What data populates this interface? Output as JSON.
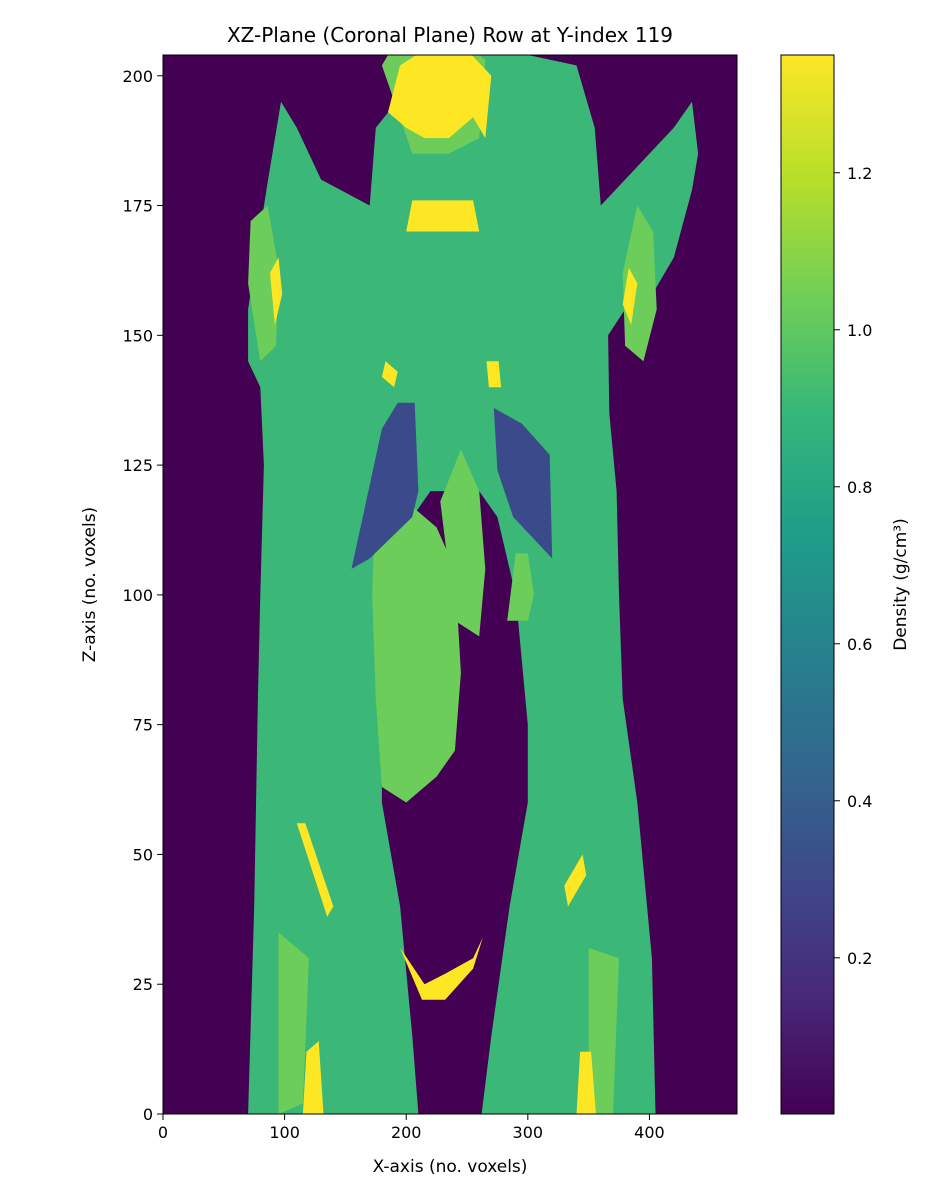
{
  "chart_data": {
    "type": "heatmap",
    "title": "XZ-Plane (Coronal Plane) Row at Y-index 119",
    "xlabel": "X-axis (no. voxels)",
    "ylabel": "Z-axis (no. voxels)",
    "xlim": [
      0,
      472
    ],
    "ylim": [
      0,
      204
    ],
    "xticks": [
      "0",
      "100",
      "200",
      "300",
      "400"
    ],
    "yticks": [
      "0",
      "25",
      "50",
      "75",
      "100",
      "125",
      "150",
      "175",
      "200"
    ],
    "colorbar": {
      "label": "Density (g/cm³)",
      "colormap": "viridis",
      "range": [
        0.001,
        1.35
      ],
      "ticks": [
        "0.2",
        "0.4",
        "0.6",
        "0.8",
        "1.0",
        "1.2"
      ]
    },
    "colors": {
      "air": "#440154",
      "lung": "#3b4a8a",
      "adipose": "#2e9e7a",
      "soft_tissue": "#3bb878",
      "muscle": "#3dbb74",
      "organ": "#6ccd5a",
      "bone": "#fde725"
    },
    "regions": [
      {
        "tissue": "soft_tissue",
        "poly": [
          [
            210,
            0
          ],
          [
            205,
            15
          ],
          [
            195,
            40
          ],
          [
            180,
            60
          ],
          [
            180,
            75
          ],
          [
            190,
            100
          ],
          [
            205,
            115
          ],
          [
            220,
            120
          ],
          [
            260,
            120
          ],
          [
            275,
            115
          ],
          [
            290,
            100
          ],
          [
            300,
            75
          ],
          [
            300,
            60
          ],
          [
            285,
            40
          ],
          [
            270,
            15
          ],
          [
            262,
            0
          ],
          [
            405,
            0
          ],
          [
            402,
            30
          ],
          [
            390,
            60
          ],
          [
            378,
            80
          ],
          [
            375,
            100
          ],
          [
            373,
            120
          ],
          [
            367,
            135
          ],
          [
            366,
            150
          ],
          [
            380,
            155
          ],
          [
            395,
            155
          ],
          [
            420,
            165
          ],
          [
            435,
            178
          ],
          [
            440,
            185
          ],
          [
            435,
            195
          ],
          [
            420,
            190
          ],
          [
            380,
            180
          ],
          [
            360,
            175
          ],
          [
            355,
            190
          ],
          [
            340,
            202
          ],
          [
            280,
            205
          ],
          [
            220,
            203
          ],
          [
            175,
            190
          ],
          [
            170,
            175
          ],
          [
            130,
            180
          ],
          [
            110,
            190
          ],
          [
            97,
            195
          ],
          [
            85,
            178
          ],
          [
            70,
            155
          ],
          [
            70,
            145
          ],
          [
            80,
            140
          ],
          [
            83,
            125
          ],
          [
            80,
            100
          ],
          [
            78,
            80
          ],
          [
            75,
            40
          ],
          [
            70,
            0
          ]
        ]
      },
      {
        "tissue": "organ",
        "poly": [
          [
            175,
            120
          ],
          [
            200,
            118
          ],
          [
            225,
            113
          ],
          [
            240,
            105
          ],
          [
            245,
            85
          ],
          [
            240,
            70
          ],
          [
            225,
            65
          ],
          [
            200,
            60
          ],
          [
            180,
            63
          ],
          [
            175,
            80
          ],
          [
            172,
            100
          ]
        ]
      },
      {
        "tissue": "organ",
        "poly": [
          [
            228,
            118
          ],
          [
            245,
            128
          ],
          [
            260,
            120
          ],
          [
            265,
            105
          ],
          [
            260,
            92
          ],
          [
            240,
            95
          ]
        ]
      },
      {
        "tissue": "organ",
        "poly": [
          [
            300,
            95
          ],
          [
            305,
            100
          ],
          [
            300,
            108
          ],
          [
            290,
            108
          ],
          [
            283,
            95
          ]
        ]
      },
      {
        "tissue": "organ",
        "poly": [
          [
            72,
            172
          ],
          [
            86,
            175
          ],
          [
            95,
            163
          ],
          [
            93,
            148
          ],
          [
            80,
            145
          ],
          [
            70,
            160
          ]
        ]
      },
      {
        "tissue": "organ",
        "poly": [
          [
            380,
            148
          ],
          [
            395,
            145
          ],
          [
            406,
            155
          ],
          [
            403,
            170
          ],
          [
            390,
            175
          ],
          [
            378,
            162
          ]
        ]
      },
      {
        "tissue": "organ",
        "poly": [
          [
            95,
            0
          ],
          [
            115,
            2
          ],
          [
            120,
            30
          ],
          [
            95,
            35
          ]
        ]
      },
      {
        "tissue": "organ",
        "poly": [
          [
            350,
            0
          ],
          [
            370,
            0
          ],
          [
            375,
            30
          ],
          [
            350,
            32
          ]
        ]
      },
      {
        "tissue": "organ",
        "poly": [
          [
            180,
            202
          ],
          [
            190,
            206
          ],
          [
            215,
            207
          ],
          [
            245,
            207
          ],
          [
            265,
            203
          ],
          [
            260,
            188
          ],
          [
            235,
            185
          ],
          [
            205,
            185
          ]
        ]
      },
      {
        "tissue": "lung",
        "poly": [
          [
            180,
            132
          ],
          [
            193,
            137
          ],
          [
            207,
            137
          ],
          [
            210,
            120
          ],
          [
            205,
            115
          ],
          [
            170,
            107
          ],
          [
            155,
            105
          ]
        ]
      },
      {
        "tissue": "lung",
        "poly": [
          [
            272,
            136
          ],
          [
            295,
            133
          ],
          [
            318,
            127
          ],
          [
            320,
            107
          ],
          [
            288,
            115
          ],
          [
            275,
            124
          ]
        ]
      },
      {
        "tissue": "air",
        "poly": [
          [
            215,
            50
          ],
          [
            232,
            55
          ],
          [
            245,
            53
          ],
          [
            250,
            48
          ],
          [
            250,
            35
          ],
          [
            240,
            35
          ],
          [
            232,
            45
          ],
          [
            222,
            45
          ],
          [
            215,
            45
          ]
        ]
      },
      {
        "tissue": "bone",
        "poly": [
          [
            185,
            193
          ],
          [
            195,
            202
          ],
          [
            215,
            205
          ],
          [
            250,
            205
          ],
          [
            270,
            200
          ],
          [
            265,
            188
          ],
          [
            255,
            192
          ],
          [
            235,
            188
          ],
          [
            215,
            188
          ],
          [
            200,
            190
          ]
        ]
      },
      {
        "tissue": "bone",
        "poly": [
          [
            200,
            170
          ],
          [
            260,
            170
          ],
          [
            255,
            176
          ],
          [
            205,
            176
          ]
        ]
      },
      {
        "tissue": "bone",
        "poly": [
          [
            88,
            162
          ],
          [
            95,
            165
          ],
          [
            98,
            158
          ],
          [
            92,
            152
          ]
        ]
      },
      {
        "tissue": "bone",
        "poly": [
          [
            378,
            156
          ],
          [
            383,
            163
          ],
          [
            390,
            160
          ],
          [
            385,
            152
          ]
        ]
      },
      {
        "tissue": "bone",
        "poly": [
          [
            110,
            56
          ],
          [
            117,
            56
          ],
          [
            140,
            40
          ],
          [
            135,
            38
          ]
        ]
      },
      {
        "tissue": "bone",
        "poly": [
          [
            330,
            44
          ],
          [
            345,
            50
          ],
          [
            348,
            46
          ],
          [
            333,
            40
          ]
        ]
      },
      {
        "tissue": "bone",
        "poly": [
          [
            195,
            32
          ],
          [
            215,
            25
          ],
          [
            232,
            27
          ],
          [
            255,
            30
          ],
          [
            263,
            34
          ],
          [
            255,
            28
          ],
          [
            232,
            22
          ],
          [
            213,
            22
          ]
        ]
      },
      {
        "tissue": "bone",
        "poly": [
          [
            115,
            0
          ],
          [
            132,
            0
          ],
          [
            128,
            14
          ],
          [
            118,
            12
          ]
        ]
      },
      {
        "tissue": "bone",
        "poly": [
          [
            340,
            0
          ],
          [
            356,
            0
          ],
          [
            352,
            12
          ],
          [
            343,
            12
          ]
        ]
      },
      {
        "tissue": "bone",
        "poly": [
          [
            180,
            142
          ],
          [
            190,
            140
          ],
          [
            193,
            143
          ],
          [
            183,
            145
          ]
        ]
      },
      {
        "tissue": "bone",
        "poly": [
          [
            268,
            140
          ],
          [
            278,
            140
          ],
          [
            276,
            145
          ],
          [
            266,
            145
          ]
        ]
      }
    ]
  }
}
